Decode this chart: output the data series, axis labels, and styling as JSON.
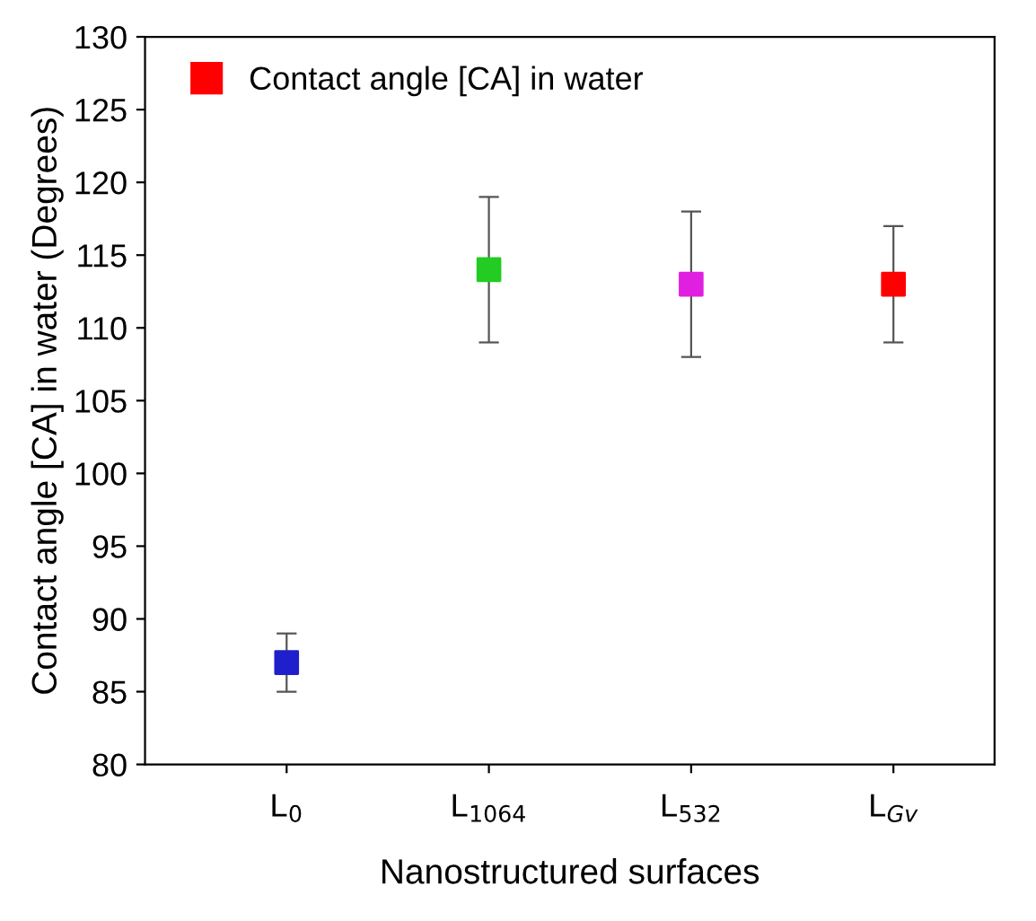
{
  "chart_data": {
    "type": "scatter",
    "xlabel": "Nanostructured surfaces",
    "ylabel": "Contact angle [CA] in water (Degrees)",
    "categories": [
      "L$_{0}$",
      "L$_{1064}$",
      "L$_{532}$",
      "L$_{Gv}$"
    ],
    "series": [
      {
        "name": "Contact angle [CA] in water",
        "color": "#ff0000",
        "colors": [
          "#1f1fcc",
          "#22cc22",
          "#e020e0",
          "#ff0000"
        ],
        "values": [
          87,
          114,
          113,
          113
        ],
        "errors": [
          2,
          5,
          5,
          4
        ]
      }
    ],
    "ylim": [
      80,
      130
    ],
    "yticks": [
      80,
      85,
      90,
      95,
      100,
      105,
      110,
      115,
      120,
      125,
      130
    ],
    "marker": "square",
    "legend": "top left",
    "grid": false
  }
}
